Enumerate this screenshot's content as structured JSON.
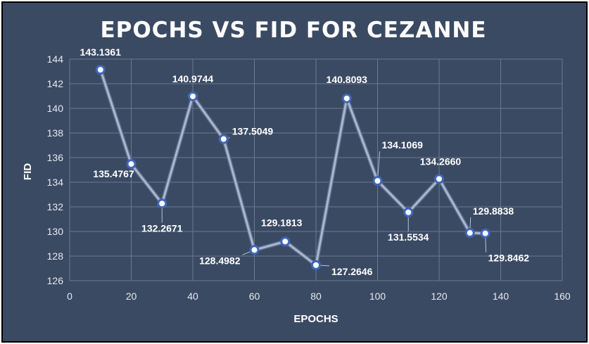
{
  "chart_data": {
    "type": "line",
    "title": "EPOCHS VS FID FOR CEZANNE",
    "xlabel": "EPOCHS",
    "ylabel": "FID",
    "xlim": [
      0,
      160
    ],
    "ylim": [
      126,
      144
    ],
    "xticks": [
      0,
      20,
      40,
      60,
      80,
      100,
      120,
      140,
      160
    ],
    "yticks": [
      126,
      128,
      130,
      132,
      134,
      136,
      138,
      140,
      142,
      144
    ],
    "grid": true,
    "legend": "none",
    "series": [
      {
        "x": [
          10,
          20,
          30,
          40,
          50,
          60,
          70,
          80,
          90,
          100,
          110,
          120,
          130,
          135
        ],
        "y": [
          143.1361,
          135.4767,
          132.2671,
          140.9744,
          137.5049,
          128.4982,
          129.1813,
          127.2646,
          140.8093,
          134.1069,
          131.5534,
          134.266,
          129.8838,
          129.8462
        ],
        "labels": [
          "143.1361",
          "135.4767",
          "132.2671",
          "140.9744",
          "137.5049",
          "128.4982",
          "129.1813",
          "127.2646",
          "140.8093",
          "134.1069",
          "131.5534",
          "134.2660",
          "129.8838",
          "129.8462"
        ]
      }
    ],
    "colors": {
      "background": "#3b4a63",
      "line": "#a9b7cf",
      "marker_fill": "#ffffff",
      "marker_ring": "#3f66b8",
      "text": "#ffffff"
    }
  }
}
